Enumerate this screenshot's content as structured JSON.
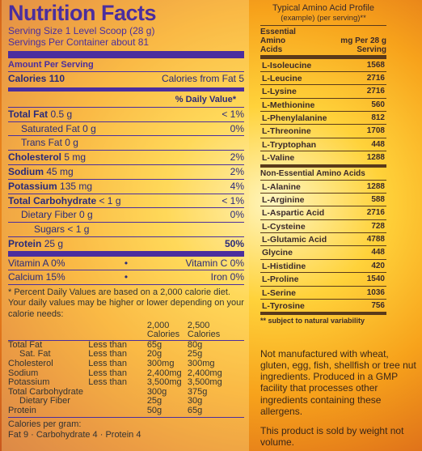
{
  "nutrition": {
    "title": "Nutrition Facts",
    "serving_size": "Serving Size 1 Level Scoop (28 g)",
    "servings_per_container": "Servings Per Container about 81",
    "amount_per_serving": "Amount Per Serving",
    "calories_label": "Calories 110",
    "calories_fat": "Calories from Fat 5",
    "dv_header": "% Daily Value*",
    "rows": [
      {
        "label": "Total Fat",
        "amount": "0.5 g",
        "dv": "< 1%"
      },
      {
        "label": "Saturated Fat",
        "amount": "0 g",
        "dv": "0%"
      },
      {
        "label": "Trans Fat",
        "amount": "0 g",
        "dv": ""
      },
      {
        "label": "Cholesterol",
        "amount": "5 mg",
        "dv": "2%"
      },
      {
        "label": "Sodium",
        "amount": "45 mg",
        "dv": "2%"
      },
      {
        "label": "Potassium",
        "amount": "135 mg",
        "dv": "4%"
      },
      {
        "label": "Total Carbohydrate",
        "amount": "< 1 g",
        "dv": "< 1%"
      },
      {
        "label": "Dietary Fiber",
        "amount": "0 g",
        "dv": "0%"
      },
      {
        "label": "Sugars",
        "amount": "< 1 g",
        "dv": ""
      },
      {
        "label": "Protein",
        "amount": "25 g",
        "dv": "50%"
      }
    ],
    "vitamins": [
      {
        "left": "Vitamin A 0%",
        "right": "Vitamin C 0%"
      },
      {
        "left": "Calcium 15%",
        "right": "Iron 0%"
      }
    ],
    "footnote": "* Percent Daily Values are based on a 2,000 calorie diet. Your daily values may be higher or lower depending on your calorie needs:",
    "footnote_table": {
      "headers": [
        "",
        "",
        "2,000\nCalories",
        "2,500\nCalories"
      ],
      "header_2000": "2,000",
      "header_2500": "2,500",
      "header_cal": "Calories",
      "rows": [
        [
          "Total Fat",
          "Less than",
          "65g",
          "80g"
        ],
        [
          "Sat. Fat",
          "Less than",
          "20g",
          "25g"
        ],
        [
          "Cholesterol",
          "Less than",
          "300mg",
          "300mg"
        ],
        [
          "Sodium",
          "Less than",
          "2,400mg",
          "2,400mg"
        ],
        [
          "Potassium",
          "Less than",
          "3,500mg",
          "3,500mg"
        ],
        [
          "Total Carbohydrate",
          "",
          "300g",
          "375g"
        ],
        [
          "Dietary Fiber",
          "",
          "25g",
          "30g"
        ],
        [
          "Protein",
          "",
          "50g",
          "65g"
        ]
      ]
    },
    "calories_per_gram_label": "Calories per gram:",
    "calories_per_gram": "Fat 9 · Carbohydrate 4 · Protein 4"
  },
  "amino": {
    "title": "Typical Amino Acid Profile",
    "subtitle": "(example) (per serving)**",
    "col1": "Essential Amino Acids",
    "col2": "mg Per 28 g Serving",
    "essential": [
      {
        "name": "L-Isoleucine",
        "mg": "1568"
      },
      {
        "name": "L-Leucine",
        "mg": "2716"
      },
      {
        "name": "L-Lysine",
        "mg": "2716"
      },
      {
        "name": "L-Methionine",
        "mg": "560"
      },
      {
        "name": "L-Phenylalanine",
        "mg": "812"
      },
      {
        "name": "L-Threonine",
        "mg": "1708"
      },
      {
        "name": "L-Tryptophan",
        "mg": "448"
      },
      {
        "name": "L-Valine",
        "mg": "1288"
      }
    ],
    "nonessential_label": "Non-Essential Amino Acids",
    "nonessential": [
      {
        "name": "L-Alanine",
        "mg": "1288"
      },
      {
        "name": "L-Arginine",
        "mg": "588"
      },
      {
        "name": "L-Aspartic Acid",
        "mg": "2716"
      },
      {
        "name": "L-Cysteine",
        "mg": "728"
      },
      {
        "name": "L-Glutamic Acid",
        "mg": "4788"
      },
      {
        "name": "Glycine",
        "mg": "448"
      },
      {
        "name": "L-Histidine",
        "mg": "420"
      },
      {
        "name": "L-Proline",
        "mg": "1540"
      },
      {
        "name": "L-Serine",
        "mg": "1036"
      },
      {
        "name": "L-Tyrosine",
        "mg": "756"
      }
    ],
    "note": "** subject to natural variability"
  },
  "info": {
    "allergen": "Not manufactured with wheat, gluten, egg, fish, shellfish or tree nut ingredients. Produced in a GMP facility that processes other ingredients containing these allergens.",
    "weight": "This product is sold by weight not volume."
  }
}
